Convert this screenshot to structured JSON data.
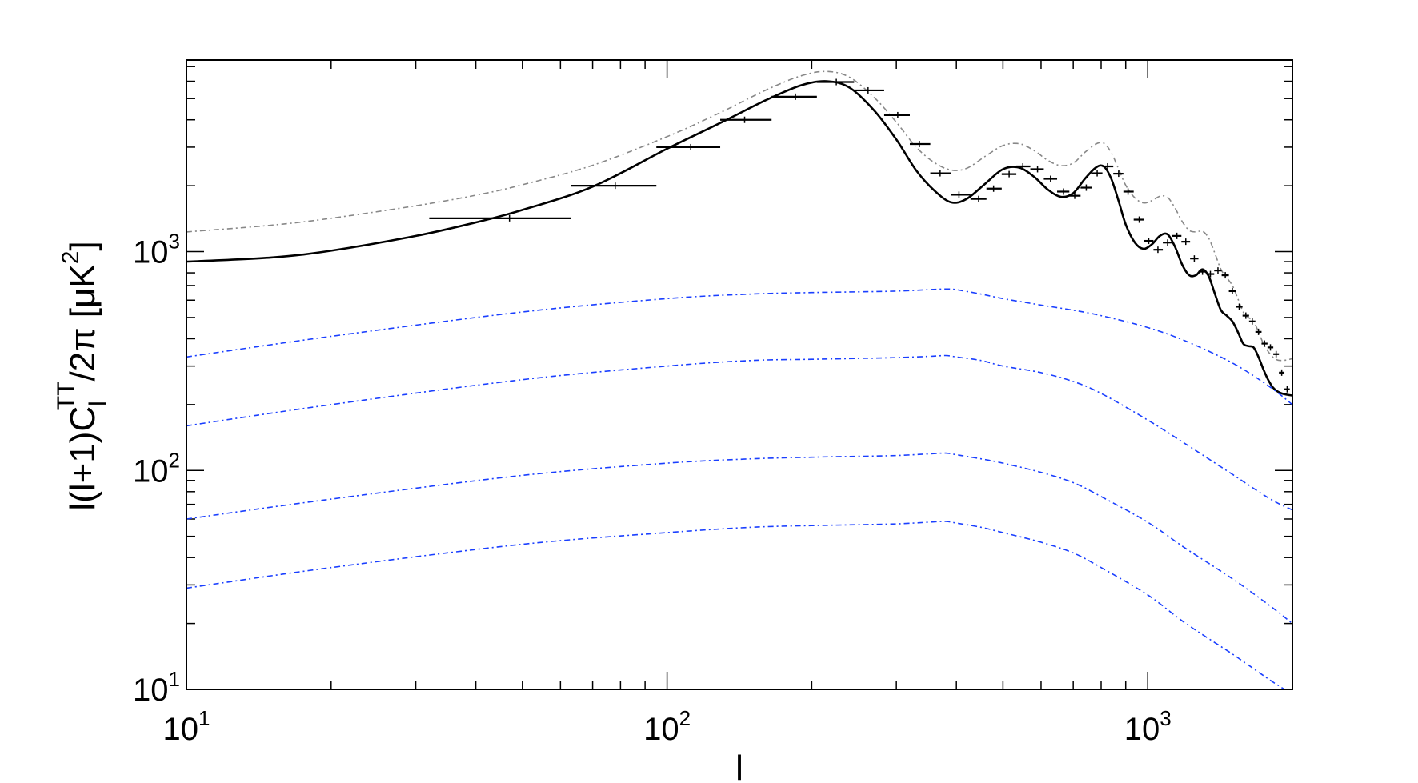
{
  "chart_data": {
    "type": "line",
    "title": "",
    "xlabel": "l",
    "ylabel": {
      "main": "l(l+1)C",
      "sub": "l",
      "sup": "TT",
      "tail": "/2π [μK",
      "tail_sup": "2",
      "close": "]"
    },
    "xscale": "log",
    "yscale": "log",
    "xlim": [
      10,
      2000
    ],
    "ylim": [
      10,
      7500
    ],
    "x_ticks": [
      {
        "value": 10,
        "base": "10",
        "exp": "1"
      },
      {
        "value": 100,
        "base": "10",
        "exp": "2"
      },
      {
        "value": 1000,
        "base": "10",
        "exp": "3"
      }
    ],
    "y_ticks": [
      {
        "value": 10,
        "base": "10",
        "exp": "1"
      },
      {
        "value": 100,
        "base": "10",
        "exp": "2"
      },
      {
        "value": 1000,
        "base": "10",
        "exp": "3"
      }
    ],
    "colors": {
      "theory": "#000000",
      "upper": "#888888",
      "foreground": "#1a3fff",
      "binned": "#000000"
    },
    "series": [
      {
        "key": "theory",
        "style": "solid",
        "x": [
          10,
          15,
          20,
          30,
          40,
          50,
          70,
          100,
          130,
          160,
          190,
          215,
          240,
          270,
          300,
          330,
          360,
          390,
          420,
          460,
          500,
          540,
          580,
          620,
          660,
          700,
          740,
          780,
          810,
          840,
          870,
          900,
          940,
          980,
          1020,
          1060,
          1100,
          1140,
          1180,
          1220,
          1260,
          1300,
          1340,
          1380,
          1420,
          1460,
          1500,
          1540,
          1580,
          1620,
          1660,
          1700,
          1740,
          1780,
          1820,
          1860,
          1900,
          1950,
          2000
        ],
        "y": [
          900,
          940,
          1010,
          1180,
          1360,
          1550,
          1980,
          2950,
          3900,
          4900,
          5750,
          6000,
          5600,
          4400,
          3250,
          2350,
          1900,
          1680,
          1740,
          2050,
          2380,
          2420,
          2200,
          1920,
          1780,
          1850,
          2150,
          2420,
          2450,
          2150,
          1700,
          1330,
          1100,
          1030,
          1080,
          1180,
          1200,
          1050,
          870,
          780,
          780,
          830,
          770,
          640,
          540,
          510,
          480,
          430,
          380,
          370,
          365,
          330,
          290,
          260,
          240,
          230,
          225,
          222,
          220
        ]
      },
      {
        "key": "upper",
        "style": "dash-dot",
        "x": [
          10,
          15,
          20,
          30,
          40,
          50,
          70,
          100,
          130,
          160,
          190,
          215,
          240,
          270,
          300,
          330,
          360,
          390,
          420,
          460,
          500,
          540,
          580,
          620,
          660,
          700,
          740,
          780,
          810,
          840,
          870,
          900,
          940,
          980,
          1020,
          1060,
          1100,
          1140,
          1180,
          1220,
          1260,
          1300,
          1340,
          1380,
          1420,
          1460,
          1500,
          1540,
          1580,
          1620,
          1660,
          1700,
          1740,
          1780,
          1820,
          1860,
          1900,
          1950,
          2000
        ],
        "y": [
          1230,
          1320,
          1420,
          1620,
          1810,
          2020,
          2480,
          3350,
          4350,
          5450,
          6350,
          6650,
          6250,
          5050,
          3900,
          3000,
          2550,
          2360,
          2400,
          2730,
          3050,
          3110,
          2900,
          2610,
          2470,
          2540,
          2840,
          3100,
          3130,
          2830,
          2380,
          2010,
          1760,
          1670,
          1710,
          1790,
          1770,
          1580,
          1370,
          1250,
          1230,
          1240,
          1150,
          980,
          830,
          760,
          700,
          610,
          530,
          500,
          480,
          430,
          380,
          350,
          330,
          320,
          318,
          320,
          325
        ]
      },
      {
        "key": "fg1",
        "style": "dash-dot",
        "x": [
          10,
          20,
          50,
          100,
          150,
          200,
          250,
          300,
          350,
          380,
          400,
          450,
          500,
          600,
          700,
          800,
          1000,
          1200,
          1500,
          1800,
          2000
        ],
        "y": [
          330,
          410,
          530,
          610,
          640,
          650,
          655,
          660,
          670,
          675,
          670,
          640,
          610,
          570,
          540,
          510,
          450,
          390,
          310,
          240,
          200
        ]
      },
      {
        "key": "fg2",
        "style": "dash-dot",
        "x": [
          10,
          20,
          50,
          100,
          150,
          200,
          250,
          300,
          350,
          380,
          400,
          450,
          500,
          600,
          700,
          800,
          1000,
          1200,
          1500,
          1800,
          2000
        ],
        "y": [
          160,
          200,
          260,
          300,
          318,
          322,
          325,
          328,
          332,
          335,
          330,
          318,
          300,
          280,
          255,
          225,
          170,
          132,
          96,
          74,
          66
        ]
      },
      {
        "key": "fg3",
        "style": "dash-dot",
        "x": [
          10,
          20,
          50,
          100,
          150,
          200,
          250,
          300,
          350,
          380,
          400,
          450,
          500,
          600,
          700,
          800,
          1000,
          1200,
          1500,
          1800,
          2000
        ],
        "y": [
          60,
          74,
          95,
          108,
          113,
          115,
          116,
          117,
          119,
          120,
          118,
          113,
          108,
          98,
          88,
          76,
          58,
          44,
          32,
          24,
          20
        ]
      },
      {
        "key": "fg4",
        "style": "dash-dot",
        "x": [
          10,
          20,
          50,
          100,
          150,
          200,
          250,
          300,
          350,
          380,
          400,
          450,
          500,
          600,
          700,
          800,
          1000,
          1200,
          1500,
          1800,
          2000
        ],
        "y": [
          29,
          36,
          46,
          52,
          55,
          56,
          56.5,
          57,
          58,
          58.5,
          57.5,
          55,
          52,
          47,
          42,
          36,
          27,
          20,
          14.5,
          11,
          9.5
        ]
      }
    ],
    "binned_points": {
      "x": [
        47,
        78,
        112,
        145,
        185,
        225,
        262,
        302,
        335,
        370,
        405,
        445,
        478,
        515,
        550,
        590,
        628,
        668,
        705,
        745,
        785,
        825,
        870,
        910,
        960,
        1005,
        1050,
        1100,
        1150,
        1200,
        1250,
        1300,
        1350,
        1400,
        1450,
        1500,
        1550,
        1600,
        1650,
        1700,
        1750,
        1800,
        1850,
        1900,
        1950
      ],
      "x_low": [
        32,
        63,
        95,
        129,
        165,
        205,
        245,
        283,
        320,
        353,
        390,
        428,
        462,
        497,
        533,
        570,
        608,
        648,
        687,
        725,
        765,
        805,
        848,
        890,
        935,
        983,
        1028,
        1075,
        1125,
        1175,
        1225,
        1275,
        1325,
        1375,
        1425,
        1475,
        1525,
        1575,
        1625,
        1675,
        1725,
        1775,
        1825,
        1875,
        1925
      ],
      "x_high": [
        63,
        95,
        129,
        165,
        205,
        245,
        283,
        320,
        353,
        390,
        428,
        462,
        497,
        533,
        570,
        608,
        648,
        687,
        725,
        765,
        805,
        848,
        890,
        935,
        983,
        1028,
        1075,
        1125,
        1175,
        1225,
        1275,
        1325,
        1375,
        1425,
        1475,
        1525,
        1575,
        1625,
        1675,
        1725,
        1775,
        1825,
        1875,
        1925,
        1975
      ],
      "y": [
        1420,
        2000,
        3000,
        4000,
        5100,
        5950,
        5450,
        4200,
        3100,
        2280,
        1820,
        1740,
        1940,
        2260,
        2450,
        2380,
        2150,
        1880,
        1800,
        1960,
        2280,
        2450,
        2270,
        1880,
        1400,
        1120,
        1020,
        1100,
        1180,
        1110,
        930,
        810,
        790,
        820,
        780,
        660,
        560,
        510,
        480,
        430,
        380,
        365,
        340,
        280,
        235
      ]
    }
  }
}
